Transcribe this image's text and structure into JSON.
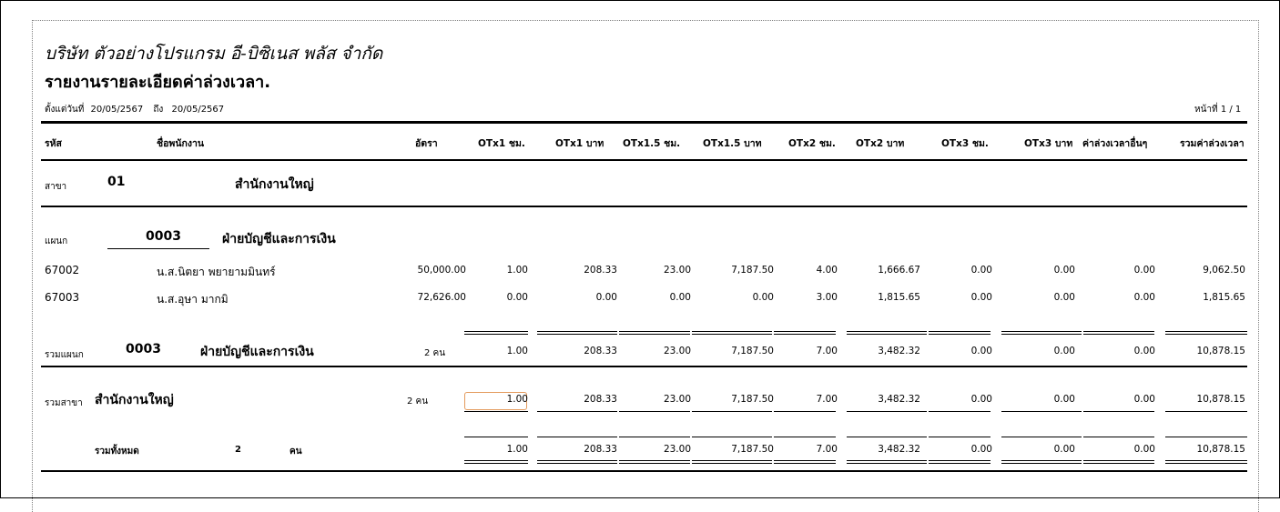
{
  "header": {
    "company": "บริษัท ตัวอย่างโปรแกรม อี-บิซิเนส พลัส  จำกัด",
    "title": "รายงานรายละเอียดค่าล่วงเวลา.",
    "date_from_label": "ตั้งแต่วันที่",
    "date_from": "20/05/2567",
    "date_to_label": "ถึง",
    "date_to": "20/05/2567",
    "page_label": "หน้าที่",
    "page_value": "1 / 1"
  },
  "columns": [
    "รหัส",
    "ชื่อพนักงาน",
    "อัตรา",
    "OTx1 ชม.",
    "OTx1 บาท",
    "OTx1.5 ชม.",
    "OTx1.5 บาท",
    "OTx2 ชม.",
    "OTx2 บาท",
    "OTx3 ชม.",
    "OTx3 บาท",
    "ค่าล่วงเวลาอื่นๆ",
    "รวมค่าล่วงเวลา"
  ],
  "branch": {
    "label": "สาขา",
    "code": "01",
    "name": "สำนักงานใหญ่"
  },
  "department": {
    "label": "แผนก",
    "code": "0003",
    "name": "ฝ่ายบัญชีและการเงิน"
  },
  "employees": [
    {
      "id": "67002",
      "name": "น.ส.นิตยา พยายามมินทร์",
      "rate": "50,000.00",
      "values": [
        "1.00",
        "208.33",
        "23.00",
        "7,187.50",
        "4.00",
        "1,666.67",
        "0.00",
        "0.00",
        "0.00",
        "9,062.50"
      ]
    },
    {
      "id": "67003",
      "name": "น.ส.อุษา มากมิ",
      "rate": "72,626.00",
      "values": [
        "0.00",
        "0.00",
        "0.00",
        "0.00",
        "3.00",
        "1,815.65",
        "0.00",
        "0.00",
        "0.00",
        "1,815.65"
      ]
    }
  ],
  "dept_total": {
    "label": "รวมแผนก",
    "code": "0003",
    "name": "ฝ่ายบัญชีและการเงิน",
    "count": "2 คน",
    "values": [
      "1.00",
      "208.33",
      "23.00",
      "7,187.50",
      "7.00",
      "3,482.32",
      "0.00",
      "0.00",
      "0.00",
      "10,878.15"
    ]
  },
  "branch_total": {
    "label": "รวมสาขา",
    "name": "สำนักงานใหญ่",
    "count": "2 คน",
    "values": [
      "1.00",
      "208.33",
      "23.00",
      "7,187.50",
      "7.00",
      "3,482.32",
      "0.00",
      "0.00",
      "0.00",
      "10,878.15"
    ]
  },
  "grand_total": {
    "label": "รวมทั้งหมด",
    "count": "2",
    "unit": "คน",
    "values": [
      "1.00",
      "208.33",
      "23.00",
      "7,187.50",
      "7.00",
      "3,482.32",
      "0.00",
      "0.00",
      "0.00",
      "10,878.15"
    ]
  }
}
